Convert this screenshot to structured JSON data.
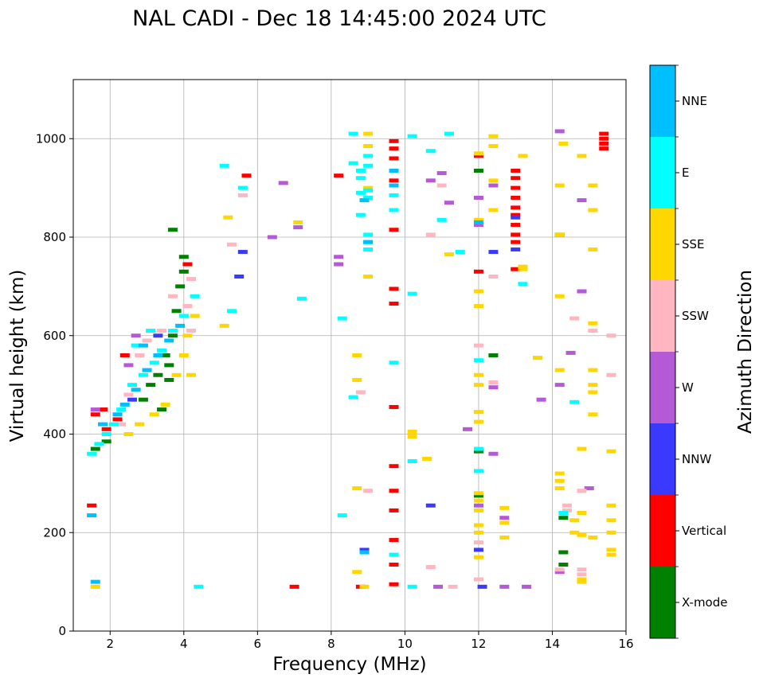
{
  "chart_data": {
    "type": "scatter",
    "title": "NAL CADI - Dec 18 14:45:00 2024 UTC",
    "xlabel": "Frequency (MHz)",
    "ylabel": "Virtual height (km)",
    "xlim": [
      1,
      16
    ],
    "ylim": [
      0,
      1120
    ],
    "xticks": [
      2,
      4,
      6,
      8,
      10,
      12,
      14,
      16
    ],
    "yticks": [
      0,
      200,
      400,
      600,
      800,
      1000
    ],
    "grid": true,
    "colorbar": {
      "label": "Azimuth Direction",
      "categories": [
        "X-mode",
        "Vertical",
        "NNW",
        "W",
        "SSW",
        "SSE",
        "E",
        "NNE"
      ],
      "colors": {
        "X-mode": "#008000",
        "Vertical": "#ff0000",
        "NNW": "#3a3aff",
        "W": "#b55ad6",
        "SSW": "#ffb6c1",
        "SSE": "#ffd700",
        "E": "#00ffff",
        "NNE": "#00bfff"
      }
    },
    "series": [
      {
        "name": "X-mode",
        "points": [
          [
            3.6,
            540
          ],
          [
            3.7,
            600
          ],
          [
            3.8,
            650
          ],
          [
            3.9,
            700
          ],
          [
            4.0,
            730
          ],
          [
            3.5,
            560
          ],
          [
            3.3,
            520
          ],
          [
            3.1,
            500
          ],
          [
            3.7,
            815
          ],
          [
            4.0,
            760
          ],
          [
            12.0,
            935
          ],
          [
            14.2,
            805
          ],
          [
            14.3,
            230
          ],
          [
            14.3,
            160
          ],
          [
            14.3,
            135
          ],
          [
            12.0,
            365
          ],
          [
            12.0,
            275
          ],
          [
            12.4,
            560
          ],
          [
            3.4,
            450
          ],
          [
            2.9,
            470
          ],
          [
            1.6,
            370
          ],
          [
            1.9,
            385
          ],
          [
            3.6,
            510
          ]
        ]
      },
      {
        "name": "Vertical",
        "points": [
          [
            1.5,
            255
          ],
          [
            1.6,
            440
          ],
          [
            1.8,
            450
          ],
          [
            1.9,
            410
          ],
          [
            2.2,
            430
          ],
          [
            2.4,
            560
          ],
          [
            4.1,
            745
          ],
          [
            5.7,
            925
          ],
          [
            7.0,
            90
          ],
          [
            8.2,
            925
          ],
          [
            9.7,
            995
          ],
          [
            9.7,
            980
          ],
          [
            9.7,
            960
          ],
          [
            9.7,
            915
          ],
          [
            9.7,
            815
          ],
          [
            9.7,
            695
          ],
          [
            9.7,
            665
          ],
          [
            9.7,
            455
          ],
          [
            9.7,
            335
          ],
          [
            9.7,
            285
          ],
          [
            9.7,
            245
          ],
          [
            9.7,
            185
          ],
          [
            9.7,
            135
          ],
          [
            9.7,
            95
          ],
          [
            13.0,
            935
          ],
          [
            13.0,
            920
          ],
          [
            13.0,
            900
          ],
          [
            13.0,
            880
          ],
          [
            13.0,
            860
          ],
          [
            13.0,
            845
          ],
          [
            13.0,
            825
          ],
          [
            13.0,
            805
          ],
          [
            13.0,
            790
          ],
          [
            13.0,
            735
          ],
          [
            12.0,
            965
          ],
          [
            12.0,
            730
          ],
          [
            15.4,
            1010
          ],
          [
            15.4,
            1000
          ],
          [
            15.4,
            990
          ],
          [
            15.4,
            980
          ],
          [
            8.8,
            90
          ]
        ]
      },
      {
        "name": "NNW",
        "points": [
          [
            8.9,
            165
          ],
          [
            13.0,
            840
          ],
          [
            13.0,
            775
          ],
          [
            12.4,
            770
          ],
          [
            12.0,
            165
          ],
          [
            12.1,
            90
          ],
          [
            10.7,
            255
          ],
          [
            5.5,
            720
          ],
          [
            5.6,
            770
          ],
          [
            3.3,
            600
          ],
          [
            2.6,
            470
          ]
        ]
      },
      {
        "name": "W",
        "points": [
          [
            6.4,
            800
          ],
          [
            6.7,
            910
          ],
          [
            7.1,
            820
          ],
          [
            8.2,
            760
          ],
          [
            8.2,
            745
          ],
          [
            10.7,
            915
          ],
          [
            11.0,
            930
          ],
          [
            11.2,
            870
          ],
          [
            11.7,
            410
          ],
          [
            12.0,
            880
          ],
          [
            12.0,
            825
          ],
          [
            12.0,
            255
          ],
          [
            12.4,
            905
          ],
          [
            12.4,
            495
          ],
          [
            12.4,
            360
          ],
          [
            12.7,
            230
          ],
          [
            12.7,
            90
          ],
          [
            13.3,
            90
          ],
          [
            13.7,
            470
          ],
          [
            14.2,
            1015
          ],
          [
            14.2,
            500
          ],
          [
            14.2,
            120
          ],
          [
            14.5,
            565
          ],
          [
            14.8,
            875
          ],
          [
            14.8,
            690
          ],
          [
            15.0,
            290
          ],
          [
            10.9,
            90
          ],
          [
            2.5,
            540
          ],
          [
            1.6,
            450
          ],
          [
            2.7,
            600
          ]
        ]
      },
      {
        "name": "SSW",
        "points": [
          [
            2.3,
            420
          ],
          [
            2.5,
            480
          ],
          [
            2.8,
            560
          ],
          [
            3.0,
            590
          ],
          [
            3.4,
            610
          ],
          [
            3.7,
            680
          ],
          [
            4.2,
            715
          ],
          [
            4.1,
            660
          ],
          [
            4.2,
            610
          ],
          [
            5.3,
            785
          ],
          [
            5.6,
            885
          ],
          [
            8.8,
            485
          ],
          [
            9.0,
            285
          ],
          [
            10.7,
            805
          ],
          [
            10.7,
            130
          ],
          [
            11.0,
            905
          ],
          [
            11.3,
            90
          ],
          [
            12.0,
            580
          ],
          [
            12.0,
            180
          ],
          [
            12.0,
            105
          ],
          [
            12.4,
            720
          ],
          [
            12.4,
            505
          ],
          [
            14.4,
            255
          ],
          [
            14.4,
            245
          ],
          [
            14.6,
            635
          ],
          [
            14.8,
            285
          ],
          [
            14.8,
            125
          ],
          [
            14.8,
            115
          ],
          [
            15.1,
            610
          ],
          [
            15.6,
            600
          ],
          [
            15.6,
            520
          ],
          [
            14.2,
            125
          ]
        ]
      },
      {
        "name": "SSE",
        "points": [
          [
            2.5,
            400
          ],
          [
            2.8,
            420
          ],
          [
            3.2,
            440
          ],
          [
            3.5,
            460
          ],
          [
            3.8,
            520
          ],
          [
            4.0,
            560
          ],
          [
            4.1,
            600
          ],
          [
            4.3,
            640
          ],
          [
            4.2,
            520
          ],
          [
            5.1,
            620
          ],
          [
            5.2,
            840
          ],
          [
            7.1,
            830
          ],
          [
            8.7,
            560
          ],
          [
            8.7,
            510
          ],
          [
            8.7,
            290
          ],
          [
            8.7,
            120
          ],
          [
            9.0,
            985
          ],
          [
            9.0,
            720
          ],
          [
            9.0,
            1010
          ],
          [
            9.0,
            900
          ],
          [
            10.2,
            405
          ],
          [
            10.2,
            395
          ],
          [
            10.6,
            350
          ],
          [
            11.2,
            765
          ],
          [
            12.0,
            970
          ],
          [
            12.0,
            835
          ],
          [
            12.0,
            690
          ],
          [
            12.0,
            660
          ],
          [
            12.0,
            520
          ],
          [
            12.0,
            500
          ],
          [
            12.0,
            445
          ],
          [
            12.0,
            425
          ],
          [
            12.0,
            280
          ],
          [
            12.0,
            265
          ],
          [
            12.0,
            245
          ],
          [
            12.0,
            215
          ],
          [
            12.0,
            200
          ],
          [
            12.0,
            150
          ],
          [
            12.4,
            1005
          ],
          [
            12.4,
            985
          ],
          [
            12.4,
            915
          ],
          [
            12.4,
            855
          ],
          [
            12.7,
            250
          ],
          [
            12.7,
            220
          ],
          [
            12.7,
            190
          ],
          [
            13.2,
            965
          ],
          [
            13.2,
            740
          ],
          [
            13.6,
            555
          ],
          [
            14.2,
            905
          ],
          [
            14.2,
            805
          ],
          [
            14.2,
            680
          ],
          [
            14.2,
            530
          ],
          [
            14.2,
            320
          ],
          [
            14.2,
            305
          ],
          [
            14.2,
            290
          ],
          [
            14.6,
            225
          ],
          [
            14.6,
            200
          ],
          [
            14.8,
            965
          ],
          [
            14.8,
            370
          ],
          [
            14.8,
            240
          ],
          [
            14.8,
            195
          ],
          [
            14.8,
            105
          ],
          [
            14.8,
            100
          ],
          [
            15.1,
            905
          ],
          [
            15.1,
            855
          ],
          [
            15.1,
            775
          ],
          [
            15.1,
            625
          ],
          [
            15.1,
            530
          ],
          [
            15.1,
            500
          ],
          [
            15.1,
            485
          ],
          [
            15.1,
            440
          ],
          [
            15.1,
            190
          ],
          [
            15.6,
            365
          ],
          [
            15.6,
            255
          ],
          [
            15.6,
            225
          ],
          [
            15.6,
            200
          ],
          [
            15.6,
            165
          ],
          [
            15.6,
            155
          ],
          [
            14.3,
            990
          ],
          [
            8.9,
            90
          ],
          [
            1.6,
            90
          ],
          [
            13.2,
            735
          ]
        ]
      },
      {
        "name": "E",
        "points": [
          [
            1.5,
            360
          ],
          [
            1.7,
            380
          ],
          [
            1.9,
            400
          ],
          [
            2.1,
            420
          ],
          [
            2.3,
            450
          ],
          [
            2.6,
            500
          ],
          [
            2.9,
            520
          ],
          [
            3.2,
            545
          ],
          [
            3.4,
            570
          ],
          [
            3.7,
            610
          ],
          [
            4.0,
            640
          ],
          [
            4.3,
            680
          ],
          [
            4.4,
            90
          ],
          [
            5.1,
            945
          ],
          [
            5.3,
            650
          ],
          [
            5.6,
            900
          ],
          [
            7.2,
            675
          ],
          [
            8.3,
            635
          ],
          [
            8.3,
            235
          ],
          [
            8.6,
            1010
          ],
          [
            8.6,
            950
          ],
          [
            8.6,
            475
          ],
          [
            8.8,
            935
          ],
          [
            8.8,
            920
          ],
          [
            8.8,
            890
          ],
          [
            8.8,
            845
          ],
          [
            9.0,
            965
          ],
          [
            9.0,
            945
          ],
          [
            9.0,
            895
          ],
          [
            9.0,
            880
          ],
          [
            9.0,
            805
          ],
          [
            9.0,
            790
          ],
          [
            9.0,
            775
          ],
          [
            9.7,
            885
          ],
          [
            9.7,
            855
          ],
          [
            9.7,
            545
          ],
          [
            9.7,
            155
          ],
          [
            10.2,
            1005
          ],
          [
            10.2,
            685
          ],
          [
            10.2,
            345
          ],
          [
            10.2,
            90
          ],
          [
            10.7,
            975
          ],
          [
            11.0,
            835
          ],
          [
            11.2,
            1010
          ],
          [
            11.5,
            770
          ],
          [
            12.0,
            550
          ],
          [
            12.0,
            370
          ],
          [
            12.0,
            325
          ],
          [
            13.2,
            705
          ],
          [
            14.6,
            465
          ],
          [
            14.3,
            240
          ],
          [
            2.7,
            580
          ],
          [
            3.1,
            610
          ]
        ]
      },
      {
        "name": "NNE",
        "points": [
          [
            1.5,
            235
          ],
          [
            1.6,
            100
          ],
          [
            2.4,
            460
          ],
          [
            2.7,
            490
          ],
          [
            3.0,
            530
          ],
          [
            3.3,
            560
          ],
          [
            3.6,
            590
          ],
          [
            3.9,
            620
          ],
          [
            2.2,
            440
          ],
          [
            1.8,
            420
          ],
          [
            8.9,
            875
          ],
          [
            9.0,
            790
          ],
          [
            9.7,
            935
          ],
          [
            9.7,
            905
          ],
          [
            12.0,
            830
          ],
          [
            8.9,
            160
          ],
          [
            2.9,
            580
          ]
        ]
      }
    ]
  }
}
